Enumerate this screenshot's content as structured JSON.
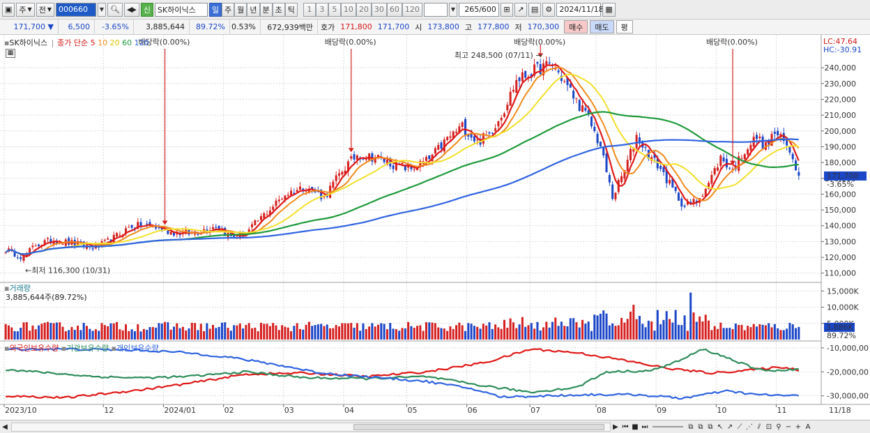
{
  "toolbar": {
    "period_label": "주",
    "prev_label": "전",
    "stock_code": "000660",
    "stock_name": "SK하이닉스",
    "new_badge": "신",
    "periods": [
      "일",
      "주",
      "월",
      "년",
      "분",
      "초",
      "틱"
    ],
    "selected_period": "일",
    "intervals": [
      "1",
      "3",
      "5",
      "10",
      "20",
      "30",
      "60",
      "120"
    ],
    "bar_count": "265",
    "bar_total": "/600",
    "date": "2024/11/18"
  },
  "quote": {
    "price": "171,700",
    "change_arrow": "▼",
    "change": "6,500",
    "change_pct": "-3.65%",
    "volume": "3,885,644",
    "volume_ratio": "89.72%",
    "turnover_pct": "0.53%",
    "amount": "672,939백만",
    "bid_label": "호가",
    "bid1": "171,800",
    "bid2": "171,700",
    "open_label": "시",
    "open": "173,800",
    "high_label": "고",
    "high": "177,800",
    "low_label": "저",
    "low": "170,300",
    "buy_label": "매수",
    "sell_label": "매도",
    "eval_label": "평"
  },
  "price_panel": {
    "stock_label": "SK하이닉스",
    "ma_label": "종가 단순",
    "ma_periods": [
      "5",
      "10",
      "20",
      "60",
      "120"
    ],
    "lc": "LC:47.64",
    "hc": "HC:-30.91",
    "current_price_tag": "171,700",
    "current_change_tag": "-3.65%",
    "high_annotation": "최고 248,500 (07/11) →",
    "low_annotation": "←최저 116,300 (10/31)",
    "dividend_label": "배당락(0.00%)"
  },
  "volume_panel": {
    "title": "거래량",
    "info": "3,885,644주(89.72%)",
    "current_tag": "3,886K",
    "current_pct_tag": "89.72%"
  },
  "holdings_panel": {
    "series_labels": [
      "외국인보유수량",
      "기관보유수량",
      "개인보유수량"
    ]
  },
  "colors": {
    "up": "#d62020",
    "down": "#1b46c8",
    "ma5": "#e01818",
    "ma10": "#f08a1c",
    "ma20": "#f2e02a",
    "ma60": "#1f9a3a",
    "ma120": "#2f63e0",
    "foreign": "#e01818",
    "institution": "#2d8c5a",
    "individual": "#2f63e0",
    "grid": "#dadada"
  },
  "chart_data": [
    {
      "type": "candlestick",
      "title": "SK하이닉스",
      "ylim": [
        105000,
        252000
      ],
      "y_ticks": [
        110000,
        120000,
        130000,
        140000,
        150000,
        160000,
        170000,
        180000,
        190000,
        200000,
        210000,
        220000,
        230000,
        240000
      ],
      "y_tick_labels": [
        "110,000",
        "120,000",
        "130,000",
        "140,000",
        "150,000",
        "160,000",
        "170,000",
        "180,000",
        "190,000",
        "200,000",
        "210,000",
        "220,000",
        "230,000",
        "240,000"
      ],
      "x_month_labels": [
        "2023/10",
        "12",
        "2024/01",
        "02",
        "03",
        "04",
        "05",
        "06",
        "07",
        "08",
        "09",
        "10",
        "11",
        "11/18"
      ],
      "x_month_positions_day": [
        0,
        33,
        53,
        73,
        93,
        113,
        134,
        154,
        175,
        197,
        217,
        237,
        257,
        263
      ],
      "close_anchors": [
        [
          0,
          125000
        ],
        [
          6,
          120000
        ],
        [
          10,
          128000
        ],
        [
          16,
          131000
        ],
        [
          22,
          129000
        ],
        [
          30,
          126000
        ],
        [
          35,
          131000
        ],
        [
          42,
          140000
        ],
        [
          48,
          140000
        ],
        [
          55,
          136000
        ],
        [
          62,
          135000
        ],
        [
          70,
          140000
        ],
        [
          75,
          133000
        ],
        [
          80,
          135000
        ],
        [
          85,
          145000
        ],
        [
          93,
          160000
        ],
        [
          100,
          165000
        ],
        [
          106,
          158000
        ],
        [
          112,
          175000
        ],
        [
          117,
          185000
        ],
        [
          124,
          183000
        ],
        [
          130,
          178000
        ],
        [
          135,
          176000
        ],
        [
          141,
          182000
        ],
        [
          147,
          195000
        ],
        [
          152,
          203000
        ],
        [
          157,
          193000
        ],
        [
          161,
          198000
        ],
        [
          166,
          214000
        ],
        [
          170,
          232000
        ],
        [
          174,
          236000
        ],
        [
          178,
          240000
        ],
        [
          182,
          242000
        ],
        [
          186,
          231000
        ],
        [
          190,
          219000
        ],
        [
          194,
          208000
        ],
        [
          198,
          190000
        ],
        [
          202,
          158000
        ],
        [
          206,
          175000
        ],
        [
          210,
          197000
        ],
        [
          214,
          185000
        ],
        [
          218,
          176000
        ],
        [
          222,
          163000
        ],
        [
          226,
          152000
        ],
        [
          230,
          156000
        ],
        [
          234,
          167000
        ],
        [
          238,
          183000
        ],
        [
          242,
          175000
        ],
        [
          246,
          188000
        ],
        [
          250,
          196000
        ],
        [
          253,
          190000
        ],
        [
          256,
          199000
        ],
        [
          259,
          193000
        ],
        [
          262,
          184000
        ],
        [
          264,
          171700
        ]
      ],
      "moving_averages": [
        5,
        10,
        20,
        60,
        120
      ],
      "last_close": 171700
    },
    {
      "type": "bar",
      "title": "거래량",
      "ylim": [
        0,
        17000
      ],
      "y_ticks": [
        5000,
        10000,
        15000
      ],
      "y_tick_labels": [
        "5,000K",
        "10,000K",
        "15,000K"
      ],
      "last_value": 3886
    },
    {
      "type": "line",
      "ylim": [
        -33000,
        -8000
      ],
      "y_ticks": [
        -30000,
        -20000,
        -10000
      ],
      "y_tick_labels": [
        "-30,000,00",
        "-20,000,00",
        "-10,000,00"
      ],
      "series": [
        {
          "name": "외국인보유수량",
          "anchors": [
            [
              0,
              -30000
            ],
            [
              20,
              -30800
            ],
            [
              45,
              -27500
            ],
            [
              60,
              -25000
            ],
            [
              80,
              -21000
            ],
            [
              100,
              -20500
            ],
            [
              120,
              -22000
            ],
            [
              140,
              -20000
            ],
            [
              160,
              -16000
            ],
            [
              175,
              -10500
            ],
            [
              190,
              -12000
            ],
            [
              205,
              -15000
            ],
            [
              220,
              -18500
            ],
            [
              235,
              -20500
            ],
            [
              250,
              -19000
            ],
            [
              258,
              -18000
            ],
            [
              264,
              -19200
            ]
          ]
        },
        {
          "name": "기관보유수량",
          "anchors": [
            [
              0,
              -19000
            ],
            [
              15,
              -20500
            ],
            [
              30,
              -22000
            ],
            [
              45,
              -22500
            ],
            [
              60,
              -22000
            ],
            [
              80,
              -20000
            ],
            [
              100,
              -22500
            ],
            [
              120,
              -22800
            ],
            [
              140,
              -22000
            ],
            [
              160,
              -26000
            ],
            [
              175,
              -28500
            ],
            [
              190,
              -26500
            ],
            [
              200,
              -20000
            ],
            [
              215,
              -19500
            ],
            [
              225,
              -15000
            ],
            [
              232,
              -10500
            ],
            [
              240,
              -14000
            ],
            [
              250,
              -19000
            ],
            [
              258,
              -19500
            ],
            [
              264,
              -19000
            ]
          ]
        },
        {
          "name": "개인보유수량",
          "anchors": [
            [
              0,
              -10500
            ],
            [
              20,
              -10500
            ],
            [
              45,
              -11000
            ],
            [
              60,
              -12000
            ],
            [
              75,
              -14000
            ],
            [
              90,
              -17000
            ],
            [
              105,
              -20500
            ],
            [
              120,
              -22000
            ],
            [
              140,
              -24000
            ],
            [
              155,
              -27000
            ],
            [
              165,
              -30500
            ],
            [
              180,
              -30000
            ],
            [
              195,
              -29500
            ],
            [
              210,
              -29500
            ],
            [
              225,
              -31000
            ],
            [
              240,
              -28000
            ],
            [
              250,
              -29500
            ],
            [
              264,
              -30000
            ]
          ]
        }
      ]
    }
  ]
}
